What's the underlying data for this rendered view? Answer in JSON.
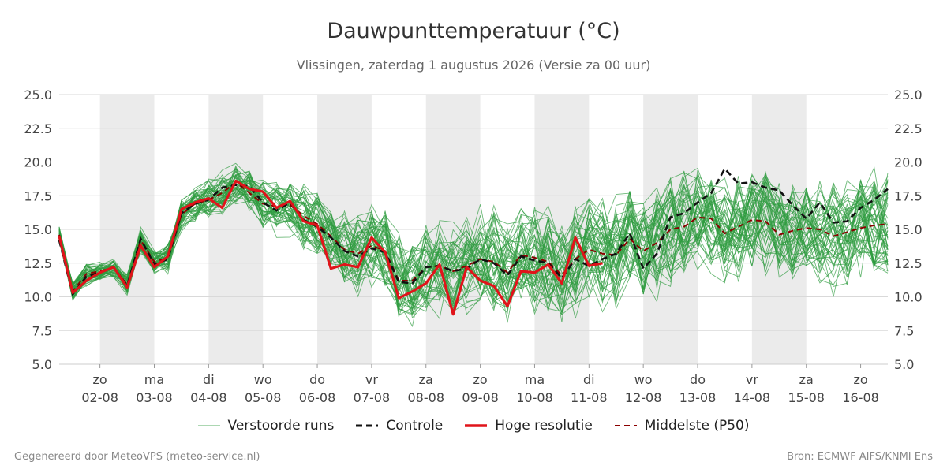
{
  "title": "Dauwpunttemperatuur (°C)",
  "subtitle": "Vlissingen, zaterdag  1 augustus 2026 (Versie za 00 uur)",
  "footer_left": "Gegenereerd door MeteoVPS (meteo-service.nl)",
  "footer_right": "Bron: ECMWF AIFS/KNMI Ens",
  "colors": {
    "ensemble": "#2e9b3e",
    "control": "#111111",
    "high_res": "#e0141a",
    "median": "#8b0000",
    "weekend_band": "#ebebeb",
    "grid": "#d9d9d9"
  },
  "legend": [
    {
      "label": "Verstoorde runs",
      "style": "thin-green"
    },
    {
      "label": "Controle",
      "style": "dashed-black"
    },
    {
      "label": "Hoge resolutie",
      "style": "solid-red"
    },
    {
      "label": "Middelste (P50)",
      "style": "dashed-darkred"
    }
  ],
  "chart_data": {
    "type": "line",
    "ylim": [
      5.0,
      25.0
    ],
    "yticks": [
      "5.0",
      "7.5",
      "10.0",
      "12.5",
      "15.0",
      "17.5",
      "20.0",
      "22.5",
      "25.0"
    ],
    "xlim": [
      -0.75,
      14.5
    ],
    "x_unit": "days since 2026-08-02 00:00",
    "xticks": [
      {
        "day": "zo",
        "date": "02-08"
      },
      {
        "day": "ma",
        "date": "03-08"
      },
      {
        "day": "di",
        "date": "04-08"
      },
      {
        "day": "wo",
        "date": "05-08"
      },
      {
        "day": "do",
        "date": "06-08"
      },
      {
        "day": "vr",
        "date": "07-08"
      },
      {
        "day": "za",
        "date": "08-08"
      },
      {
        "day": "zo",
        "date": "09-08"
      },
      {
        "day": "ma",
        "date": "10-08"
      },
      {
        "day": "di",
        "date": "11-08"
      },
      {
        "day": "wo",
        "date": "12-08"
      },
      {
        "day": "do",
        "date": "13-08"
      },
      {
        "day": "vr",
        "date": "14-08"
      },
      {
        "day": "za",
        "date": "15-08"
      },
      {
        "day": "zo",
        "date": "16-08"
      }
    ],
    "shaded_days": [
      0,
      2,
      4,
      6,
      8,
      10,
      12
    ],
    "x": [
      -0.75,
      -0.5,
      -0.25,
      0,
      0.25,
      0.5,
      0.75,
      1,
      1.25,
      1.5,
      1.75,
      2,
      2.25,
      2.5,
      2.75,
      3,
      3.25,
      3.5,
      3.75,
      4,
      4.25,
      4.5,
      4.75,
      5,
      5.25,
      5.5,
      5.75,
      6,
      6.25,
      6.5,
      6.75,
      7,
      7.25,
      7.5,
      7.75,
      8,
      8.25,
      8.5,
      8.75,
      9,
      9.25,
      9.5,
      9.75,
      10,
      10.25,
      10.5,
      10.75,
      11,
      11.25,
      11.5,
      11.75,
      12,
      12.25,
      12.5,
      12.75,
      13,
      13.25,
      13.5,
      13.75,
      14,
      14.25,
      14.5
    ],
    "high_res": {
      "name": "Hoge resolutie",
      "x": [
        -0.75,
        -0.5,
        -0.25,
        0,
        0.25,
        0.5,
        0.75,
        1,
        1.25,
        1.5,
        1.75,
        2,
        2.25,
        2.5,
        2.75,
        3,
        3.25,
        3.5,
        3.75,
        4,
        4.25,
        4.5,
        4.75,
        5,
        5.25,
        5.5,
        5.75,
        6,
        6.25,
        6.5,
        6.75,
        7,
        7.25,
        7.5,
        7.75,
        8,
        8.25,
        8.5,
        8.75,
        9,
        9.25
      ],
      "values": [
        14.5,
        10.3,
        11.2,
        11.8,
        12.2,
        10.7,
        13.8,
        12.2,
        13.0,
        16.5,
        17.0,
        17.3,
        16.6,
        18.6,
        18.0,
        17.8,
        16.6,
        17.1,
        15.6,
        15.3,
        12.1,
        12.4,
        12.2,
        14.4,
        13.3,
        9.9,
        10.4,
        11.0,
        12.4,
        8.7,
        12.2,
        11.2,
        10.8,
        9.3,
        11.9,
        11.8,
        12.4,
        11.0,
        14.4,
        12.3,
        12.5
      ]
    },
    "control": {
      "name": "Controle",
      "values": [
        14.2,
        10.2,
        11.5,
        11.8,
        12.2,
        10.8,
        14.3,
        12.4,
        12.8,
        16.2,
        16.9,
        17.2,
        18.1,
        18.3,
        18.2,
        17.0,
        16.4,
        17.0,
        15.7,
        15.2,
        14.4,
        13.4,
        13.0,
        13.6,
        13.3,
        11.1,
        11.0,
        12.2,
        12.3,
        11.9,
        12.1,
        12.8,
        12.5,
        11.6,
        13.0,
        12.7,
        12.5,
        11.4,
        12.8,
        12.3,
        12.8,
        13.2,
        14.7,
        12.1,
        13.2,
        15.9,
        16.2,
        17.0,
        17.7,
        19.5,
        18.4,
        18.5,
        18.1,
        17.9,
        16.8,
        15.8,
        17.0,
        15.5,
        15.6,
        16.6,
        17.2,
        18.0
      ]
    },
    "median": {
      "name": "Middelste (P50)",
      "values": [
        14.6,
        10.4,
        11.7,
        11.9,
        12.2,
        10.9,
        14.2,
        12.6,
        12.9,
        16.1,
        16.9,
        17.2,
        17.7,
        18.5,
        17.7,
        16.9,
        16.7,
        16.8,
        16.0,
        15.4,
        14.5,
        13.5,
        13.2,
        13.8,
        13.4,
        11.2,
        11.2,
        12.2,
        12.3,
        11.9,
        12.3,
        12.8,
        12.6,
        11.8,
        13.1,
        12.9,
        12.6,
        11.6,
        12.8,
        13.5,
        13.2,
        13.1,
        14.3,
        13.4,
        14.0,
        15.0,
        15.2,
        15.9,
        15.8,
        14.7,
        15.2,
        15.7,
        15.6,
        14.6,
        14.9,
        15.1,
        15.0,
        14.5,
        14.8,
        15.1,
        15.3,
        15.4
      ]
    },
    "ensemble": {
      "name": "Verstoorde runs",
      "count": 50,
      "center": [
        14.6,
        10.4,
        11.7,
        11.9,
        12.2,
        10.9,
        14.2,
        12.6,
        12.9,
        16.1,
        16.9,
        17.2,
        17.7,
        18.5,
        17.7,
        16.9,
        16.7,
        16.8,
        16.0,
        15.4,
        14.5,
        13.5,
        13.2,
        13.8,
        13.4,
        11.2,
        11.2,
        12.2,
        12.3,
        11.9,
        12.3,
        12.8,
        12.6,
        11.8,
        13.1,
        12.9,
        12.6,
        11.6,
        12.8,
        13.5,
        13.2,
        13.1,
        14.3,
        13.4,
        14.0,
        15.0,
        15.2,
        15.9,
        15.8,
        14.7,
        15.2,
        15.7,
        15.6,
        14.6,
        14.9,
        15.1,
        15.0,
        14.5,
        14.8,
        15.1,
        15.3,
        15.4
      ],
      "spread": [
        0.5,
        0.6,
        0.7,
        0.6,
        0.7,
        0.7,
        0.8,
        0.8,
        0.9,
        1.0,
        1.0,
        1.2,
        1.3,
        1.3,
        1.4,
        1.5,
        1.6,
        1.8,
        2.0,
        2.1,
        2.2,
        2.4,
        2.5,
        2.6,
        2.7,
        2.8,
        2.9,
        3.0,
        3.0,
        3.1,
        3.1,
        3.2,
        3.2,
        3.2,
        3.3,
        3.3,
        3.3,
        3.3,
        3.3,
        3.4,
        3.4,
        3.4,
        3.4,
        3.4,
        3.4,
        3.4,
        3.4,
        3.4,
        3.4,
        3.4,
        3.4,
        3.4,
        3.4,
        3.4,
        3.4,
        3.4,
        3.4,
        3.4,
        3.4,
        3.4,
        3.4,
        3.4
      ]
    }
  }
}
